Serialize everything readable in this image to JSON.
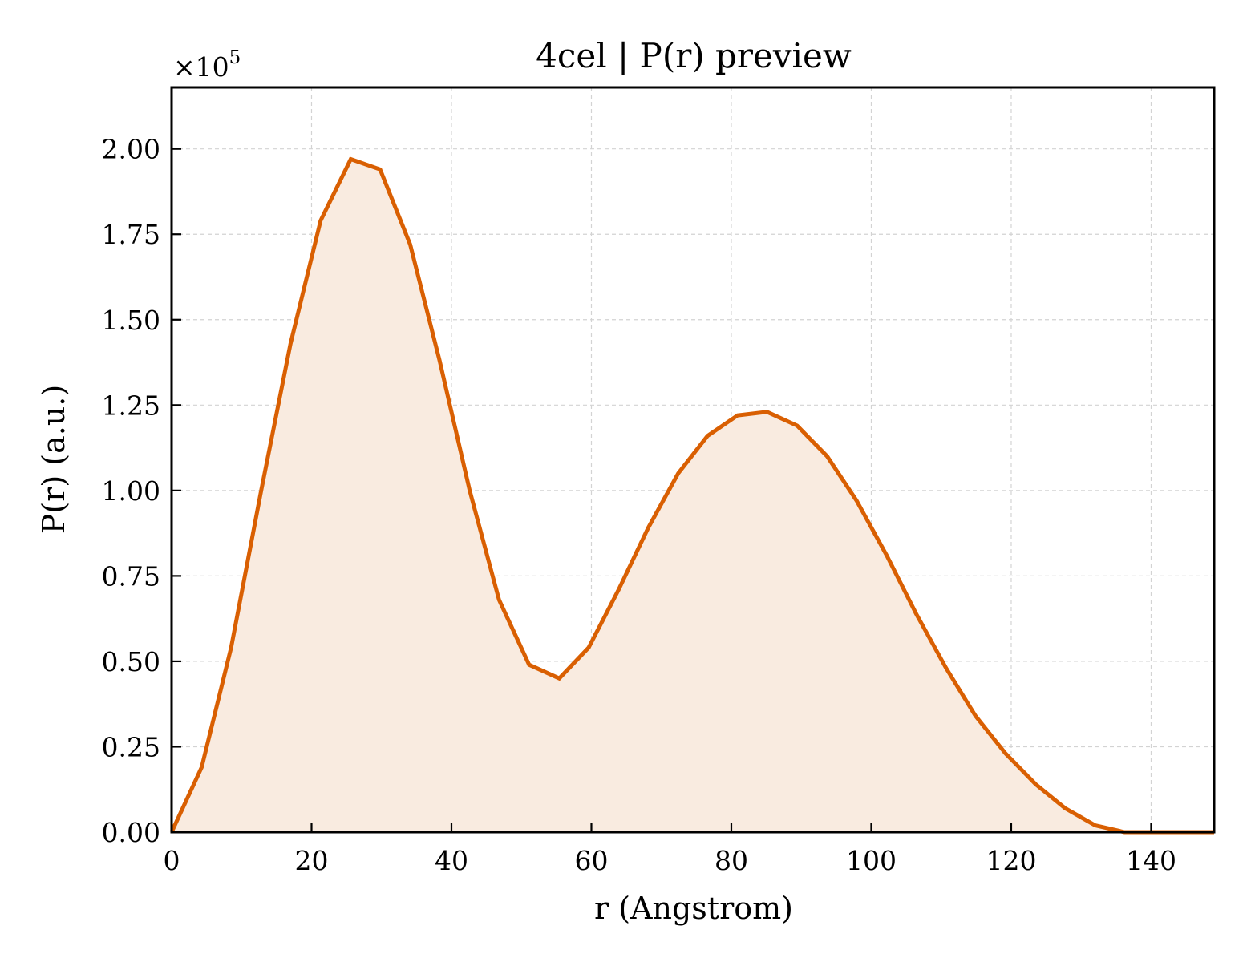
{
  "chart_data": {
    "type": "area",
    "title": "4cel | P(r) preview",
    "xlabel": "r (Angstrom)",
    "ylabel": "P(r) (a.u.)",
    "y_multiplier": "×10",
    "y_multiplier_exponent": "5",
    "xlim": [
      0,
      149
    ],
    "ylim": [
      0,
      2.18
    ],
    "x_ticks": [
      0,
      20,
      40,
      60,
      80,
      100,
      120,
      140
    ],
    "x_tick_labels": [
      "0",
      "20",
      "40",
      "60",
      "80",
      "100",
      "120",
      "140"
    ],
    "y_ticks": [
      0,
      0.25,
      0.5,
      0.75,
      1.0,
      1.25,
      1.5,
      1.75,
      2.0
    ],
    "y_tick_labels": [
      "0.00",
      "0.25",
      "0.50",
      "0.75",
      "1.00",
      "1.25",
      "1.50",
      "1.75",
      "2.00"
    ],
    "grid": true,
    "line_color": "#d95f02",
    "fill_color": "#f9ebe0",
    "series": [
      {
        "x": [
          0,
          4.3,
          8.5,
          12.8,
          17.0,
          21.3,
          25.6,
          29.8,
          34.1,
          38.3,
          42.6,
          46.8,
          51.1,
          55.4,
          59.6,
          63.9,
          68.1,
          72.4,
          76.6,
          80.9,
          85.1,
          89.4,
          93.7,
          97.9,
          102.2,
          106.4,
          110.7,
          114.9,
          119.2,
          123.5,
          127.7,
          132.0,
          136.2,
          140.5,
          144.7,
          149.0
        ],
        "values": [
          0.0,
          0.19,
          0.54,
          1.0,
          1.43,
          1.79,
          1.97,
          1.94,
          1.72,
          1.38,
          1.0,
          0.68,
          0.49,
          0.45,
          0.54,
          0.71,
          0.89,
          1.05,
          1.16,
          1.22,
          1.23,
          1.19,
          1.1,
          0.97,
          0.81,
          0.64,
          0.48,
          0.34,
          0.23,
          0.14,
          0.07,
          0.02,
          0.0,
          0.0,
          0.0,
          0.0
        ]
      }
    ]
  }
}
